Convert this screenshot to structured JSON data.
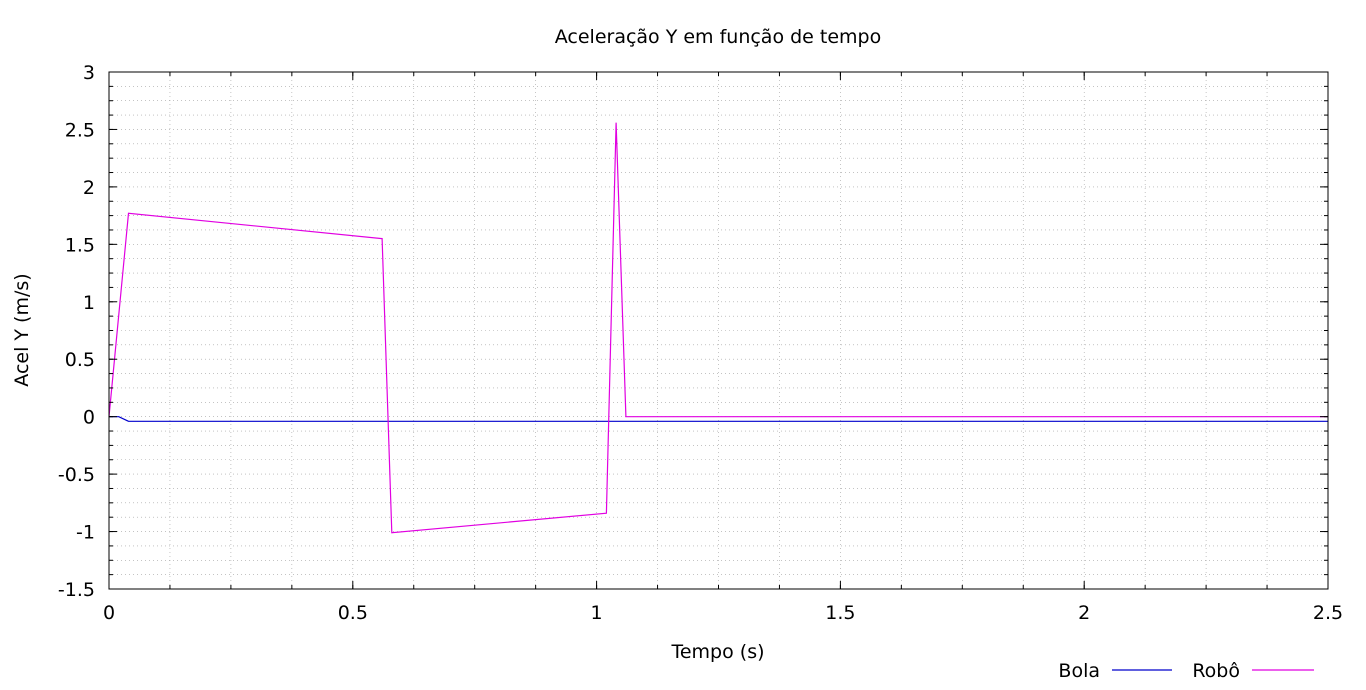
{
  "chart_data": {
    "type": "line",
    "title": "Aceleração Y em função de tempo",
    "xlabel": "Tempo (s)",
    "ylabel": "Acel Y (m/s)",
    "xlim": [
      0,
      2.5
    ],
    "ylim": [
      -1.5,
      3
    ],
    "x_ticks": [
      {
        "value": 0,
        "label": "0"
      },
      {
        "value": 0.5,
        "label": "0.5"
      },
      {
        "value": 1,
        "label": "1"
      },
      {
        "value": 1.5,
        "label": "1.5"
      },
      {
        "value": 2,
        "label": "2"
      },
      {
        "value": 2.5,
        "label": "2.5"
      }
    ],
    "y_ticks": [
      {
        "value": 3,
        "label": "3"
      },
      {
        "value": 2.5,
        "label": "2.5"
      },
      {
        "value": 2,
        "label": "2"
      },
      {
        "value": 1.5,
        "label": "1.5"
      },
      {
        "value": 1,
        "label": "1"
      },
      {
        "value": 0.5,
        "label": "0.5"
      },
      {
        "value": 0,
        "label": "0"
      },
      {
        "value": -0.5,
        "label": "-0.5"
      },
      {
        "value": -1,
        "label": "-1"
      },
      {
        "value": -1.5,
        "label": "-1.5"
      }
    ],
    "x_minor_step": 0.125,
    "y_minor_step": 0.125,
    "grid": true,
    "legend_position": "bottom-right",
    "series": [
      {
        "name": "Bola",
        "color": "#0000cc",
        "points": [
          [
            0,
            0
          ],
          [
            0.02,
            0
          ],
          [
            0.04,
            -0.04
          ],
          [
            2.5,
            -0.04
          ]
        ]
      },
      {
        "name": "Robô",
        "color": "#e100e1",
        "points": [
          [
            0,
            0
          ],
          [
            0.04,
            1.77
          ],
          [
            0.56,
            1.55
          ],
          [
            0.58,
            -1.01
          ],
          [
            1.02,
            -0.84
          ],
          [
            1.04,
            2.56
          ],
          [
            1.06,
            0
          ],
          [
            2.5,
            0
          ]
        ]
      }
    ]
  }
}
